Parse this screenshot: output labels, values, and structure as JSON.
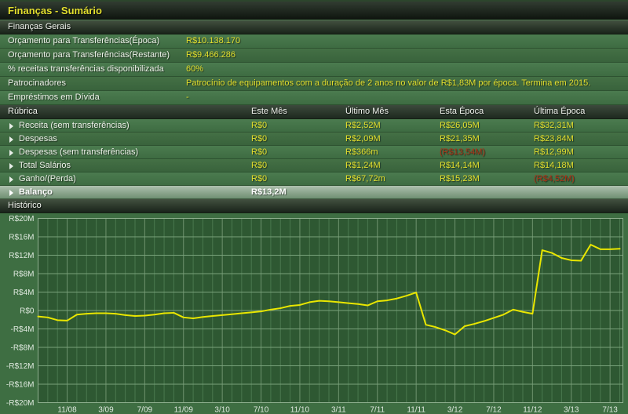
{
  "colors": {
    "accent": "#e3df2e",
    "negative": "#ad2f15",
    "page_bg": "#3e6e42",
    "plot_bg": "#2e5832",
    "grid_minor": "#4a784e",
    "grid_major": "#6e936e",
    "grid_h": "#79a27b",
    "plot_border": "#8fb08f",
    "tick_text": "#dfe9df",
    "chart_line": "#e9e600"
  },
  "title_bar": {
    "title": "Finanças - Sumário"
  },
  "general": {
    "header": "Finanças Gerais",
    "rows": [
      {
        "label": "Orçamento para Transferências(Época)",
        "value": "R$10.138.170"
      },
      {
        "label": "Orçamento para Transferências(Restante)",
        "value": "R$9.466.286"
      },
      {
        "label": "% receitas transferências disponibilizada",
        "value": "60%"
      },
      {
        "label": "Patrocinadores",
        "value": "Patrocínio de equipamentos com a duração de 2 anos no valor de R$1,83M por época. Termina em 2015."
      },
      {
        "label": "Empréstimos em Dívida",
        "value": "-"
      }
    ]
  },
  "table": {
    "columns": [
      "Rúbrica",
      "Este Mês",
      "Último Mês",
      "Esta Época",
      "Última Época"
    ],
    "rows": [
      {
        "label": "Receita (sem transferências)",
        "cells": [
          "R$0",
          "R$2,52M",
          "R$26,05M",
          "R$32,31M"
        ],
        "negative_cells": []
      },
      {
        "label": "Despesas",
        "cells": [
          "R$0",
          "R$2,09M",
          "R$21,35M",
          "R$23,84M"
        ],
        "negative_cells": []
      },
      {
        "label": "Despesas (sem transferências)",
        "cells": [
          "R$0",
          "R$366m",
          "(R$13,54M)",
          "R$12,99M"
        ],
        "negative_cells": [
          2
        ]
      },
      {
        "label": "Total Salários",
        "cells": [
          "R$0",
          "R$1,24M",
          "R$14,14M",
          "R$14,18M"
        ],
        "negative_cells": []
      },
      {
        "label": "Ganho/(Perda)",
        "cells": [
          "R$0",
          "R$67,72m",
          "R$15,23M",
          "(R$4,52M)"
        ],
        "negative_cells": [
          3
        ]
      },
      {
        "label": "Balanço",
        "cells": [
          "R$13,2M",
          "",
          "",
          ""
        ],
        "negative_cells": [],
        "highlighted": true
      }
    ]
  },
  "history": {
    "header": "Histórico"
  },
  "chart_data": {
    "type": "line",
    "title": "Histórico",
    "xlabel": "",
    "ylabel": "",
    "ylim": [
      -20,
      20
    ],
    "y_unit": "R$ millions",
    "grid": true,
    "legend": false,
    "y_ticks": [
      {
        "label": "R$20M",
        "value": 20
      },
      {
        "label": "R$16M",
        "value": 16
      },
      {
        "label": "R$12M",
        "value": 12
      },
      {
        "label": "R$8M",
        "value": 8
      },
      {
        "label": "R$4M",
        "value": 4
      },
      {
        "label": "R$0",
        "value": 0
      },
      {
        "label": "-R$4M",
        "value": -4
      },
      {
        "label": "-R$8M",
        "value": -8
      },
      {
        "label": "-R$12M",
        "value": -12
      },
      {
        "label": "-R$16M",
        "value": -16
      },
      {
        "label": "-R$20M",
        "value": -20
      }
    ],
    "x": [
      "8/08",
      "9/08",
      "10/08",
      "11/08",
      "12/08",
      "1/09",
      "2/09",
      "3/09",
      "4/09",
      "5/09",
      "6/09",
      "7/09",
      "8/09",
      "9/09",
      "10/09",
      "11/09",
      "12/09",
      "1/10",
      "2/10",
      "3/10",
      "4/10",
      "5/10",
      "6/10",
      "7/10",
      "8/10",
      "9/10",
      "10/10",
      "11/10",
      "12/10",
      "1/11",
      "2/11",
      "3/11",
      "4/11",
      "5/11",
      "6/11",
      "7/11",
      "8/11",
      "9/11",
      "10/11",
      "11/11",
      "12/11",
      "1/12",
      "2/12",
      "3/12",
      "4/12",
      "5/12",
      "6/12",
      "7/12",
      "8/12",
      "9/12",
      "10/12",
      "11/12",
      "12/12",
      "1/13",
      "2/13",
      "3/13",
      "4/13",
      "5/13",
      "6/13",
      "7/13",
      "8/13"
    ],
    "x_tick_indices": [
      3,
      7,
      11,
      15,
      19,
      23,
      27,
      31,
      35,
      39,
      43,
      47,
      51,
      55,
      59
    ],
    "series": [
      {
        "name": "Balanço",
        "color": "#e9e600",
        "values": [
          -1.3,
          -1.5,
          -2.1,
          -2.2,
          -0.9,
          -0.7,
          -0.6,
          -0.6,
          -0.7,
          -1.0,
          -1.2,
          -1.1,
          -0.9,
          -0.6,
          -0.5,
          -1.5,
          -1.7,
          -1.4,
          -1.2,
          -1.0,
          -0.8,
          -0.6,
          -0.4,
          -0.2,
          0.2,
          0.5,
          1.0,
          1.2,
          1.8,
          2.1,
          2.0,
          1.8,
          1.6,
          1.4,
          1.1,
          2.0,
          2.2,
          2.6,
          3.2,
          3.9,
          -3.1,
          -3.6,
          -4.3,
          -5.2,
          -3.4,
          -2.9,
          -2.3,
          -1.6,
          -0.9,
          0.2,
          -0.3,
          -0.7,
          13.1,
          12.5,
          11.4,
          10.9,
          10.8,
          14.3,
          13.3,
          13.3,
          13.4
        ]
      }
    ]
  }
}
